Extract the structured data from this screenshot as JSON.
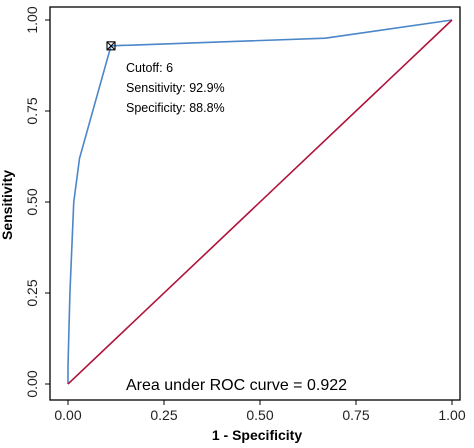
{
  "chart_data": {
    "type": "line",
    "title": "",
    "xlabel": "1 - Specificity",
    "ylabel": "Sensitivity",
    "xlim": [
      0,
      1
    ],
    "ylim": [
      0,
      1
    ],
    "x_ticks": [
      "0.00",
      "0.25",
      "0.50",
      "0.75",
      "1.00"
    ],
    "y_ticks": [
      "0.00",
      "0.25",
      "0.50",
      "0.75",
      "1.00"
    ],
    "grid": false,
    "series": [
      {
        "color": "#4a86c8",
        "points": [
          [
            0.0,
            0.0
          ],
          [
            0.0,
            0.05
          ],
          [
            0.005,
            0.25
          ],
          [
            0.015,
            0.5
          ],
          [
            0.03,
            0.62
          ],
          [
            0.112,
            0.929
          ],
          [
            0.67,
            0.95
          ],
          [
            1.0,
            1.0
          ]
        ]
      },
      {
        "color": "#b0123a",
        "points": [
          [
            0,
            0
          ],
          [
            1,
            1
          ]
        ]
      }
    ],
    "marker": {
      "x": 0.112,
      "y": 0.929
    },
    "annotations": {
      "cutoff": "Cutoff: 6",
      "sensitivity": "Sensitivity: 92.9%",
      "specificity": "Specificity: 88.8%"
    },
    "auc_text": "Area under ROC curve =  0.922"
  }
}
